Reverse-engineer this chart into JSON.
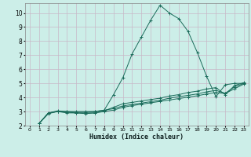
{
  "xlabel": "Humidex (Indice chaleur)",
  "bg_color": "#cceee8",
  "grid_color": "#b8d8d4",
  "line_color": "#1a6b5a",
  "xlim": [
    -0.5,
    23.5
  ],
  "ylim": [
    2,
    10.7
  ],
  "xticks": [
    0,
    1,
    2,
    3,
    4,
    5,
    6,
    7,
    8,
    9,
    10,
    11,
    12,
    13,
    14,
    15,
    16,
    17,
    18,
    19,
    20,
    21,
    22,
    23
  ],
  "yticks": [
    2,
    3,
    4,
    5,
    6,
    7,
    8,
    9,
    10
  ],
  "series": [
    {
      "x": [
        1,
        2,
        3,
        4,
        5,
        6,
        7,
        8,
        9,
        10,
        11,
        12,
        13,
        14,
        15,
        16,
        17,
        18,
        19,
        20,
        21,
        22,
        23
      ],
      "y": [
        2.15,
        2.9,
        3.0,
        3.0,
        3.0,
        3.0,
        3.0,
        3.1,
        4.2,
        5.4,
        7.1,
        8.3,
        9.5,
        10.55,
        10.0,
        9.6,
        8.7,
        7.2,
        5.5,
        4.05,
        4.9,
        5.0,
        5.0
      ]
    },
    {
      "x": [
        1,
        2,
        3,
        4,
        5,
        6,
        7,
        8,
        9,
        10,
        11,
        12,
        13,
        14,
        15,
        16,
        17,
        18,
        19,
        20,
        21,
        22,
        23
      ],
      "y": [
        2.15,
        2.9,
        3.0,
        2.95,
        2.9,
        2.9,
        2.9,
        3.05,
        3.3,
        3.55,
        3.65,
        3.75,
        3.85,
        3.95,
        4.1,
        4.2,
        4.35,
        4.45,
        4.6,
        4.7,
        4.2,
        4.85,
        5.05
      ]
    },
    {
      "x": [
        1,
        2,
        3,
        4,
        5,
        6,
        7,
        8,
        9,
        10,
        11,
        12,
        13,
        14,
        15,
        16,
        17,
        18,
        19,
        20,
        21,
        22,
        23
      ],
      "y": [
        2.15,
        2.9,
        3.05,
        3.0,
        2.95,
        2.95,
        3.0,
        3.1,
        3.2,
        3.4,
        3.5,
        3.6,
        3.7,
        3.8,
        3.95,
        4.05,
        4.15,
        4.25,
        4.4,
        4.5,
        4.3,
        4.75,
        5.0
      ]
    },
    {
      "x": [
        1,
        2,
        3,
        4,
        5,
        6,
        7,
        8,
        9,
        10,
        11,
        12,
        13,
        14,
        15,
        16,
        17,
        18,
        19,
        20,
        21,
        22,
        23
      ],
      "y": [
        2.15,
        2.85,
        3.0,
        2.9,
        2.9,
        2.85,
        2.9,
        3.0,
        3.1,
        3.3,
        3.42,
        3.52,
        3.62,
        3.72,
        3.82,
        3.92,
        4.02,
        4.12,
        4.25,
        4.35,
        4.28,
        4.62,
        4.95
      ]
    }
  ]
}
